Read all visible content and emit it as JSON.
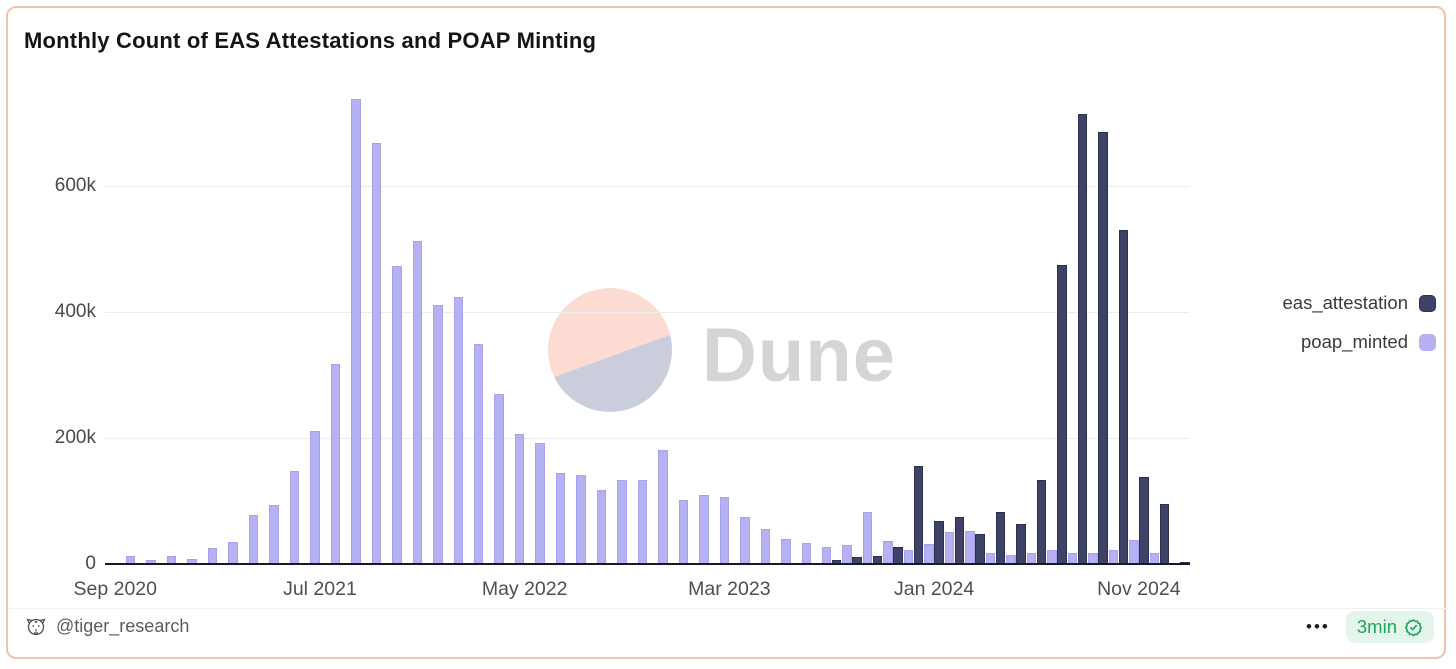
{
  "card": {
    "title": "Monthly Count of EAS Attestations and POAP Minting"
  },
  "watermark": {
    "brand_text": "Dune",
    "circle_top_color": "#fcdcd2",
    "circle_bottom_color": "#c9cddc"
  },
  "legend": {
    "items": [
      {
        "label": "eas_attestation",
        "color": "#3e4266"
      },
      {
        "label": "poap_minted",
        "color": "#b6b1f2"
      }
    ]
  },
  "y_axis": {
    "ticks": [
      {
        "value": 0,
        "label": "0"
      },
      {
        "value": 200000,
        "label": "200k"
      },
      {
        "value": 400000,
        "label": "400k"
      },
      {
        "value": 600000,
        "label": "600k"
      }
    ]
  },
  "x_axis": {
    "ticks": [
      {
        "index": 0,
        "label": "Sep 2020"
      },
      {
        "index": 10,
        "label": "Jul 2021"
      },
      {
        "index": 20,
        "label": "May 2022"
      },
      {
        "index": 30,
        "label": "Mar 2023"
      },
      {
        "index": 40,
        "label": "Jan 2024"
      },
      {
        "index": 50,
        "label": "Nov 2024"
      }
    ]
  },
  "footer": {
    "author": "@tiger_research",
    "menu": "•••",
    "badge_label": "3min",
    "badge_color": "#1ea35a"
  },
  "chart_data": {
    "type": "bar",
    "title": "Monthly Count of EAS Attestations and POAP Minting",
    "xlabel": "",
    "ylabel": "",
    "unit": "count",
    "ylim": [
      0,
      760000
    ],
    "grid": true,
    "legend_position": "right",
    "categories": [
      "Sep 2020",
      "Oct 2020",
      "Nov 2020",
      "Dec 2020",
      "Jan 2021",
      "Feb 2021",
      "Mar 2021",
      "Apr 2021",
      "May 2021",
      "Jun 2021",
      "Jul 2021",
      "Aug 2021",
      "Sep 2021",
      "Oct 2021",
      "Nov 2021",
      "Dec 2021",
      "Jan 2022",
      "Feb 2022",
      "Mar 2022",
      "Apr 2022",
      "May 2022",
      "Jun 2022",
      "Jul 2022",
      "Aug 2022",
      "Sep 2022",
      "Oct 2022",
      "Nov 2022",
      "Dec 2022",
      "Jan 2023",
      "Feb 2023",
      "Mar 2023",
      "Apr 2023",
      "May 2023",
      "Jun 2023",
      "Jul 2023",
      "Aug 2023",
      "Sep 2023",
      "Oct 2023",
      "Nov 2023",
      "Dec 2023",
      "Jan 2024",
      "Feb 2024",
      "Mar 2024",
      "Apr 2024",
      "May 2024",
      "Jun 2024",
      "Jul 2024",
      "Aug 2024",
      "Sep 2024",
      "Oct 2024",
      "Nov 2024",
      "Dec 2024",
      "Jan 2025"
    ],
    "series": [
      {
        "name": "poap_minted",
        "color": "#b6b1f2",
        "values": [
          2000,
          13000,
          6000,
          12000,
          8000,
          26000,
          35000,
          77000,
          94000,
          148000,
          211000,
          317000,
          738000,
          668000,
          473000,
          513000,
          411000,
          424000,
          349000,
          270000,
          206000,
          192000,
          144000,
          142000,
          118000,
          133000,
          133000,
          181000,
          102000,
          109000,
          106000,
          74000,
          56000,
          40000,
          34000,
          27000,
          30000,
          82000,
          37000,
          23000,
          32000,
          51000,
          53000,
          18000,
          15000,
          18000,
          22000,
          17000,
          18000,
          22000,
          38000,
          18000,
          1000
        ]
      },
      {
        "name": "eas_attestation",
        "color": "#3e4266",
        "values": [
          0,
          0,
          0,
          0,
          0,
          0,
          0,
          0,
          0,
          0,
          0,
          0,
          0,
          0,
          0,
          0,
          0,
          0,
          0,
          0,
          0,
          0,
          0,
          0,
          0,
          0,
          0,
          0,
          0,
          0,
          0,
          0,
          0,
          0,
          2000,
          6000,
          11000,
          13000,
          27000,
          155000,
          69000,
          74000,
          48000,
          82000,
          64000,
          134000,
          474000,
          714000,
          685000,
          530000,
          138000,
          96000,
          3000
        ]
      }
    ]
  }
}
